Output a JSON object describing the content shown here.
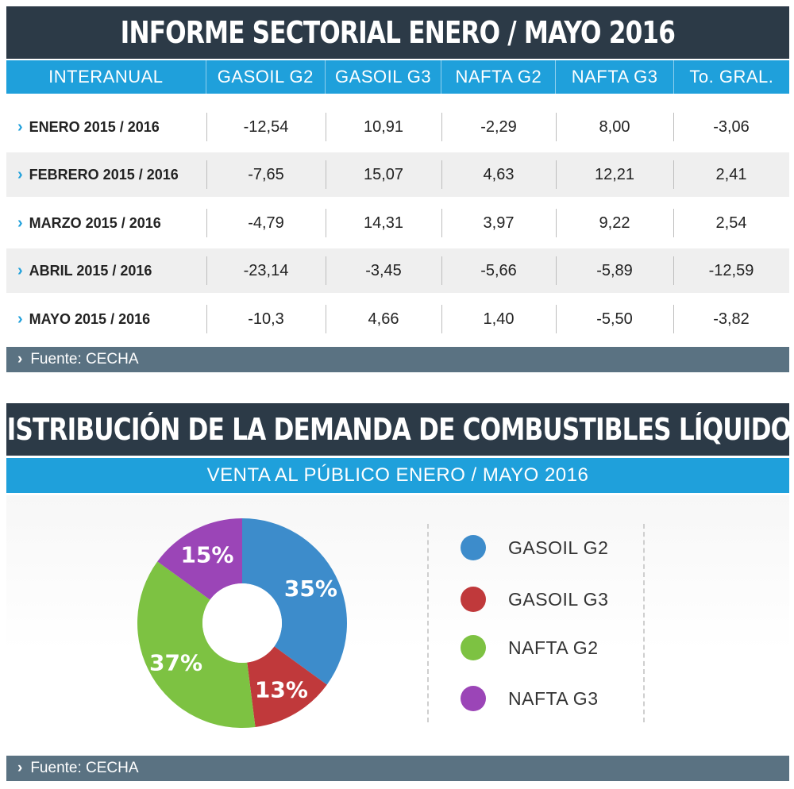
{
  "table_title": "INFORME SECTORIAL ENERO / MAYO 2016",
  "headers": [
    "INTERANUAL",
    "GASOIL G2",
    "GASOIL G3",
    "NAFTA G2",
    "NAFTA G3",
    "To. GRAL."
  ],
  "rows": [
    {
      "label": "ENERO 2015 /  2016",
      "values": [
        "-12,54",
        "10,91",
        "-2,29",
        "8,00",
        "-3,06"
      ]
    },
    {
      "label": "FEBRERO 2015 / 2016",
      "values": [
        "-7,65",
        "15,07",
        "4,63",
        "12,21",
        "2,41"
      ]
    },
    {
      "label": "MARZO 2015 / 2016",
      "values": [
        "-4,79",
        "14,31",
        "3,97",
        "9,22",
        "2,54"
      ]
    },
    {
      "label": "ABRIL 2015 / 2016",
      "values": [
        "-23,14",
        "-3,45",
        "-5,66",
        "-5,89",
        "-12,59"
      ]
    },
    {
      "label": "MAYO 2015 / 2016",
      "values": [
        "-10,3",
        "4,66",
        "1,40",
        "-5,50",
        "-3,82"
      ]
    }
  ],
  "source_1": "Fuente: CECHA",
  "chart_title": "DISTRIBUCIÓN DE LA DEMANDA DE COMBUSTIBLES LÍQUIDOS",
  "chart_subtitle": "VENTA AL PÚBLICO ENERO / MAYO 2016",
  "source_2": "Fuente: CECHA",
  "colors": {
    "banner": "#2c3a47",
    "accent": "#1fa0db",
    "source_bar": "#5a7282"
  },
  "chart_data": [
    {
      "type": "table",
      "title": "INFORME SECTORIAL ENERO / MAYO 2016",
      "columns": [
        "INTERANUAL",
        "GASOIL G2",
        "GASOIL G3",
        "NAFTA G2",
        "NAFTA G3",
        "To. GRAL."
      ],
      "rows": [
        [
          "ENERO 2015 /  2016",
          -12.54,
          10.91,
          -2.29,
          8.0,
          -3.06
        ],
        [
          "FEBRERO 2015 / 2016",
          -7.65,
          15.07,
          4.63,
          12.21,
          2.41
        ],
        [
          "MARZO 2015 / 2016",
          -4.79,
          14.31,
          3.97,
          9.22,
          2.54
        ],
        [
          "ABRIL 2015 / 2016",
          -23.14,
          -3.45,
          -5.66,
          -5.89,
          -12.59
        ],
        [
          "MAYO 2015 / 2016",
          -10.3,
          4.66,
          1.4,
          -5.5,
          -3.82
        ]
      ]
    },
    {
      "type": "pie",
      "title": "DISTRIBUCIÓN DE LA DEMANDA DE COMBUSTIBLES LÍQUIDOS",
      "subtitle": "VENTA AL PÚBLICO ENERO / MAYO 2016",
      "donut": true,
      "legend": "right",
      "slices": [
        {
          "name": "GASOIL G2",
          "value": 35,
          "label": "35%",
          "color": "#3d8ccb"
        },
        {
          "name": "GASOIL G3",
          "value": 13,
          "label": "13%",
          "color": "#c0393b"
        },
        {
          "name": "NAFTA G2",
          "value": 37,
          "label": "37%",
          "color": "#7dc242"
        },
        {
          "name": "NAFTA G3",
          "value": 15,
          "label": "15%",
          "color": "#9b45b7"
        }
      ]
    }
  ]
}
